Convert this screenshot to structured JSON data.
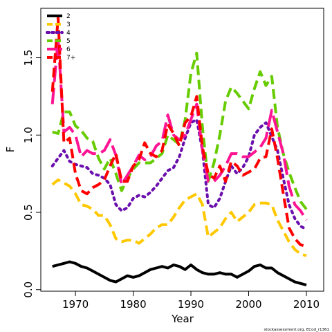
{
  "chart_data": {
    "type": "line",
    "title": "",
    "xlabel": "Year",
    "ylabel": "F",
    "xlim": [
      1964,
      2013
    ],
    "ylim": [
      -0.01,
      1.82
    ],
    "xticks": [
      1970,
      1980,
      1990,
      2000,
      2010
    ],
    "yticks": [
      0.0,
      0.5,
      1.0,
      1.5
    ],
    "ytick_labels": [
      "0.0",
      "0.5",
      "1.0",
      "1.5"
    ],
    "grid": false,
    "legend_position": "top-left",
    "source_note": "stockassessment.org, ECod_r1361",
    "x": [
      1966,
      1967,
      1968,
      1969,
      1970,
      1971,
      1972,
      1973,
      1974,
      1975,
      1976,
      1977,
      1978,
      1979,
      1980,
      1981,
      1982,
      1983,
      1984,
      1985,
      1986,
      1987,
      1988,
      1989,
      1990,
      1991,
      1992,
      1993,
      1994,
      1995,
      1996,
      1997,
      1998,
      1999,
      2000,
      2001,
      2002,
      2003,
      2004,
      2005,
      2006,
      2007,
      2008,
      2009,
      2010
    ],
    "series": [
      {
        "name": "2",
        "color": "#000000",
        "dash": "solid",
        "values": [
          0.15,
          0.16,
          0.17,
          0.18,
          0.17,
          0.15,
          0.14,
          0.12,
          0.1,
          0.08,
          0.06,
          0.05,
          0.07,
          0.09,
          0.08,
          0.09,
          0.11,
          0.13,
          0.14,
          0.15,
          0.14,
          0.16,
          0.15,
          0.13,
          0.16,
          0.13,
          0.11,
          0.1,
          0.1,
          0.11,
          0.1,
          0.1,
          0.08,
          0.1,
          0.12,
          0.15,
          0.16,
          0.14,
          0.14,
          0.11,
          0.09,
          0.07,
          0.05,
          0.04,
          0.03
        ]
      },
      {
        "name": "3",
        "color": "#ffc800",
        "dash": "dashed",
        "values": [
          0.68,
          0.71,
          0.69,
          0.67,
          0.62,
          0.55,
          0.54,
          0.52,
          0.48,
          0.48,
          0.42,
          0.33,
          0.31,
          0.32,
          0.32,
          0.3,
          0.33,
          0.36,
          0.4,
          0.42,
          0.42,
          0.47,
          0.53,
          0.58,
          0.6,
          0.62,
          0.55,
          0.34,
          0.37,
          0.4,
          0.46,
          0.5,
          0.44,
          0.47,
          0.5,
          0.55,
          0.56,
          0.56,
          0.55,
          0.45,
          0.38,
          0.31,
          0.26,
          0.23,
          0.22
        ]
      },
      {
        "name": "4",
        "color": "#6a0dad",
        "dash": "dotted",
        "values": [
          0.8,
          0.85,
          0.9,
          0.83,
          0.81,
          0.8,
          0.79,
          0.75,
          0.74,
          0.72,
          0.68,
          0.55,
          0.51,
          0.53,
          0.59,
          0.61,
          0.6,
          0.63,
          0.67,
          0.72,
          0.77,
          0.79,
          0.86,
          0.98,
          1.08,
          1.1,
          0.9,
          0.55,
          0.53,
          0.59,
          0.7,
          0.8,
          0.75,
          0.79,
          0.86,
          1.0,
          1.05,
          1.08,
          0.99,
          0.9,
          0.72,
          0.55,
          0.46,
          0.41,
          0.39
        ]
      },
      {
        "name": "5",
        "color": "#66cc00",
        "dash": "dashed",
        "values": [
          1.02,
          1.01,
          1.15,
          1.15,
          1.06,
          1.03,
          0.98,
          0.96,
          0.85,
          0.78,
          0.85,
          0.75,
          0.64,
          0.72,
          0.78,
          0.82,
          0.82,
          0.82,
          0.85,
          0.88,
          1.0,
          0.97,
          0.94,
          1.1,
          1.4,
          1.53,
          1.05,
          0.7,
          0.82,
          1.0,
          1.22,
          1.31,
          1.27,
          1.22,
          1.17,
          1.3,
          1.41,
          1.32,
          1.38,
          1.05,
          0.88,
          0.76,
          0.66,
          0.57,
          0.52
        ]
      },
      {
        "name": "6",
        "color": "#ff1493",
        "dash": "long-dashed",
        "values": [
          1.2,
          1.62,
          1.02,
          1.05,
          1.0,
          0.86,
          0.9,
          0.88,
          0.88,
          0.9,
          0.97,
          0.87,
          0.68,
          0.74,
          0.8,
          0.87,
          0.84,
          0.86,
          0.93,
          0.96,
          1.13,
          1.0,
          0.97,
          1.0,
          1.1,
          1.2,
          0.9,
          0.7,
          0.7,
          0.74,
          0.8,
          0.88,
          0.88,
          0.86,
          0.86,
          0.89,
          0.92,
          0.98,
          1.16,
          1.02,
          0.88,
          0.67,
          0.55,
          0.51,
          0.45
        ]
      },
      {
        "name": "7+",
        "color": "#ff0000",
        "dash": "dashed",
        "values": [
          1.28,
          1.76,
          0.95,
          0.98,
          0.75,
          0.64,
          0.62,
          0.66,
          0.68,
          0.71,
          0.8,
          0.88,
          0.7,
          0.7,
          0.8,
          0.84,
          0.95,
          0.88,
          0.86,
          0.9,
          1.07,
          1.01,
          0.93,
          1.08,
          1.12,
          1.25,
          0.92,
          0.75,
          0.72,
          0.8,
          0.7,
          0.83,
          0.8,
          0.74,
          0.76,
          0.78,
          0.85,
          0.86,
          1.04,
          0.85,
          0.62,
          0.4,
          0.33,
          0.29,
          0.28
        ]
      }
    ]
  }
}
